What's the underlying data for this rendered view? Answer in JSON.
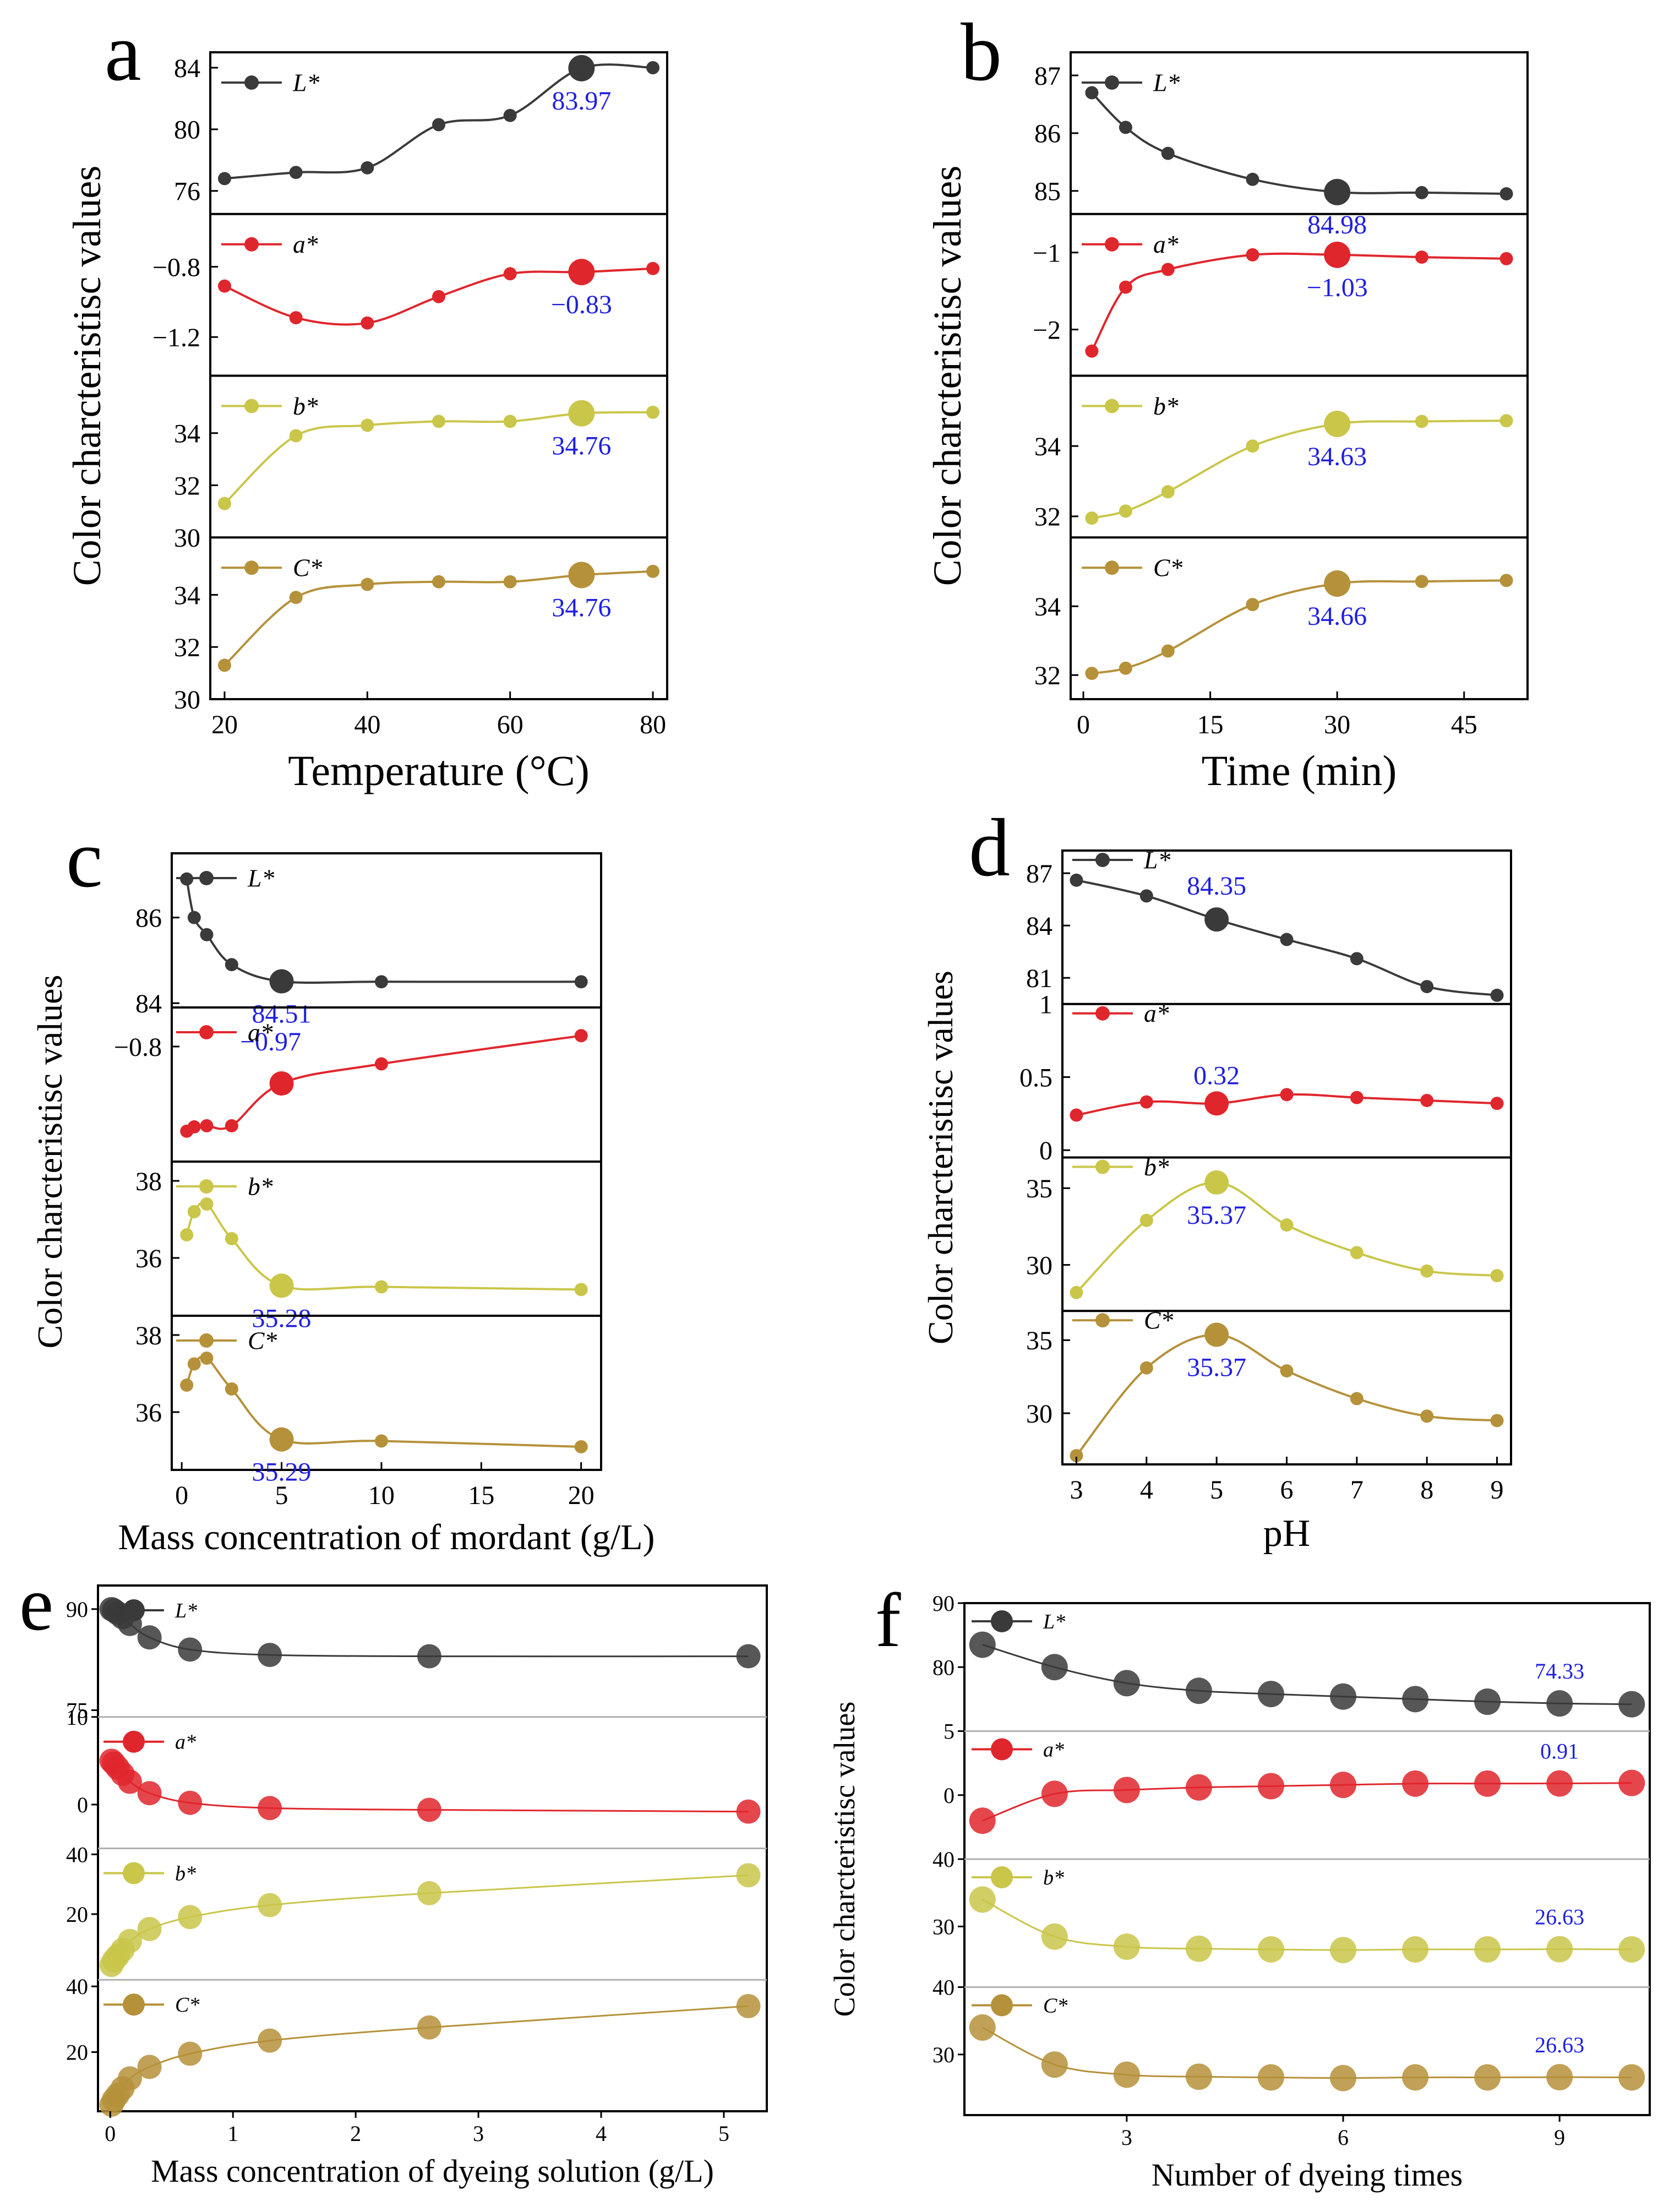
{
  "figure": {
    "shared_ylabel": "Color charcteristisc values",
    "colors": {
      "L": "#3a3a3a",
      "a": "#e0262d",
      "b": "#c9c64a",
      "C": "#b5913a",
      "annotation": "#1f1fe0",
      "divider": "#b0b0b0"
    }
  },
  "chart_data": [
    {
      "panel": "a",
      "type": "line",
      "xlabel": "Temperature (°C)",
      "ylabel": "Color charcteristisc values",
      "x": [
        20,
        30,
        40,
        50,
        60,
        70,
        80
      ],
      "xlim": [
        18,
        82
      ],
      "xticks": [
        20,
        40,
        60,
        80
      ],
      "series": [
        {
          "name": "L*",
          "key": "L",
          "values": [
            76.8,
            77.2,
            77.5,
            80.3,
            80.9,
            83.97,
            84.0
          ],
          "ylim": [
            74.5,
            85
          ],
          "yticks": [
            76,
            80,
            84
          ],
          "highlight": 5,
          "annotation": "83.97"
        },
        {
          "name": "a*",
          "key": "a",
          "values": [
            -0.91,
            -1.09,
            -1.12,
            -0.97,
            -0.84,
            -0.83,
            -0.81
          ],
          "ylim": [
            -1.42,
            -0.5
          ],
          "yticks": [
            -1.2,
            -0.8
          ],
          "highlight": 5,
          "annotation": "−0.83"
        },
        {
          "name": "b*",
          "key": "b",
          "values": [
            31.3,
            33.9,
            34.3,
            34.45,
            34.45,
            34.76,
            34.8
          ],
          "ylim": [
            30,
            36.2
          ],
          "yticks": [
            30,
            32,
            34
          ],
          "highlight": 5,
          "annotation": "34.76"
        },
        {
          "name": "C*",
          "key": "C",
          "values": [
            31.3,
            33.9,
            34.4,
            34.5,
            34.5,
            34.76,
            34.9
          ],
          "ylim": [
            30,
            36.2
          ],
          "yticks": [
            30,
            32,
            34
          ],
          "highlight": 5,
          "annotation": "34.76"
        }
      ]
    },
    {
      "panel": "b",
      "type": "line",
      "xlabel": "Time (min)",
      "ylabel": "Color charcteristisc values",
      "x": [
        1,
        5,
        10,
        20,
        30,
        40,
        50
      ],
      "xlim": [
        -1.5,
        52.5
      ],
      "xticks": [
        0,
        15,
        30,
        45
      ],
      "series": [
        {
          "name": "L*",
          "key": "L",
          "values": [
            86.7,
            86.1,
            85.65,
            85.2,
            84.98,
            84.97,
            84.95
          ],
          "ylim": [
            84.6,
            87.4
          ],
          "yticks": [
            85,
            86,
            87
          ],
          "highlight": 4,
          "annotation": "84.98"
        },
        {
          "name": "a*",
          "key": "a",
          "values": [
            -2.28,
            -1.45,
            -1.22,
            -1.03,
            -1.03,
            -1.06,
            -1.08
          ],
          "ylim": [
            -2.6,
            -0.5
          ],
          "yticks": [
            -2,
            -1
          ],
          "highlight": 4,
          "annotation": "−1.03"
        },
        {
          "name": "b*",
          "key": "b",
          "values": [
            31.95,
            32.15,
            32.7,
            34.0,
            34.63,
            34.7,
            34.72
          ],
          "ylim": [
            31.4,
            36.0
          ],
          "yticks": [
            32,
            34
          ],
          "highlight": 4,
          "annotation": "34.63"
        },
        {
          "name": "C*",
          "key": "C",
          "values": [
            32.05,
            32.2,
            32.7,
            34.05,
            34.66,
            34.72,
            34.75
          ],
          "ylim": [
            31.3,
            36.0
          ],
          "yticks": [
            32,
            34
          ],
          "highlight": 4,
          "annotation": "34.66"
        }
      ]
    },
    {
      "panel": "c",
      "type": "line",
      "xlabel": "Mass concentration of mordant (g/L)",
      "ylabel": "Color charcteristisc values",
      "x": [
        0.25,
        0.625,
        1.25,
        2.5,
        5,
        10,
        20
      ],
      "xlim": [
        -0.5,
        21
      ],
      "xticks": [
        0,
        5,
        10,
        15,
        20
      ],
      "series": [
        {
          "name": "L*",
          "key": "L",
          "values": [
            86.9,
            86.0,
            85.6,
            84.9,
            84.51,
            84.5,
            84.5
          ],
          "ylim": [
            83.9,
            87.5
          ],
          "yticks": [
            84,
            86
          ],
          "highlight": 4,
          "annotation": "84.51"
        },
        {
          "name": "a*",
          "key": "a",
          "values": [
            -1.19,
            -1.17,
            -1.165,
            -1.165,
            -0.97,
            -0.88,
            -0.75
          ],
          "ylim": [
            -1.33,
            -0.62
          ],
          "yticks": [
            -0.8
          ],
          "highlight": 4,
          "annotation": "−0.97"
        },
        {
          "name": "b*",
          "key": "b",
          "values": [
            36.6,
            37.2,
            37.4,
            36.5,
            35.28,
            35.25,
            35.18
          ],
          "ylim": [
            34.5,
            38.5
          ],
          "yticks": [
            36,
            38
          ],
          "highlight": 4,
          "annotation": "35.28"
        },
        {
          "name": "C*",
          "key": "C",
          "values": [
            36.7,
            37.25,
            37.4,
            36.6,
            35.29,
            35.25,
            35.1
          ],
          "ylim": [
            34.5,
            38.5
          ],
          "yticks": [
            36,
            38
          ],
          "highlight": 4,
          "annotation": "35.29"
        }
      ]
    },
    {
      "panel": "d",
      "type": "line",
      "xlabel": "pH",
      "ylabel": "Color charcteristisc values",
      "x": [
        3,
        4,
        5,
        6,
        7,
        8,
        9
      ],
      "xlim": [
        2.8,
        9.2
      ],
      "xticks": [
        3,
        4,
        5,
        6,
        7,
        8,
        9
      ],
      "series": [
        {
          "name": "L*",
          "key": "L",
          "values": [
            86.6,
            85.7,
            84.35,
            83.2,
            82.1,
            80.5,
            80.0
          ],
          "ylim": [
            79.5,
            88.3
          ],
          "yticks": [
            81,
            84,
            87
          ],
          "highlight": 2,
          "annotation": "84.35"
        },
        {
          "name": "a*",
          "key": "a",
          "values": [
            0.24,
            0.33,
            0.32,
            0.38,
            0.36,
            0.34,
            0.32
          ],
          "ylim": [
            -0.05,
            1.0
          ],
          "yticks": [
            0.0,
            0.5,
            1.0
          ],
          "highlight": 2,
          "annotation": "0.32"
        },
        {
          "name": "b*",
          "key": "b",
          "values": [
            28.2,
            32.9,
            35.37,
            32.6,
            30.8,
            29.6,
            29.3
          ],
          "ylim": [
            27.0,
            37.0
          ],
          "yticks": [
            30,
            35
          ],
          "highlight": 2,
          "annotation": "35.37"
        },
        {
          "name": "C*",
          "key": "C",
          "values": [
            27.1,
            33.1,
            35.37,
            32.9,
            31.0,
            29.8,
            29.5
          ],
          "ylim": [
            26.5,
            37.0
          ],
          "yticks": [
            30,
            35
          ],
          "highlight": 2,
          "annotation": "35.37"
        }
      ]
    },
    {
      "panel": "e",
      "type": "line",
      "xlabel": "Mass concentration of dyeing solution (g/L)",
      "ylabel": "Color charcteristisc values",
      "x": [
        0.01,
        0.03,
        0.06,
        0.1,
        0.16,
        0.32,
        0.65,
        1.3,
        2.6,
        5.2
      ],
      "xlim": [
        -0.1,
        5.35
      ],
      "xticks": [
        0,
        1,
        2,
        3,
        4,
        5
      ],
      "series": [
        {
          "name": "L*",
          "key": "L",
          "values": [
            90.0,
            89.8,
            89.4,
            88.8,
            87.8,
            85.8,
            84.0,
            83.2,
            83.0,
            83.0
          ],
          "ylim": [
            74,
            93.5
          ],
          "yticks": [
            75,
            90
          ],
          "highlight": null,
          "annotation": ""
        },
        {
          "name": "a*",
          "key": "a",
          "values": [
            5.0,
            4.7,
            4.2,
            3.5,
            2.6,
            1.3,
            0.2,
            -0.4,
            -0.6,
            -0.8
          ],
          "ylim": [
            -5,
            10
          ],
          "yticks": [
            0,
            10
          ],
          "highlight": null,
          "annotation": ""
        },
        {
          "name": "b*",
          "key": "b",
          "values": [
            3.0,
            4.5,
            6.0,
            8.0,
            11.0,
            15.0,
            19.0,
            23.0,
            27.0,
            33.0
          ],
          "ylim": [
            -2,
            42
          ],
          "yticks": [
            20,
            40
          ],
          "highlight": null,
          "annotation": ""
        },
        {
          "name": "C*",
          "key": "C",
          "values": [
            4.0,
            5.5,
            7.0,
            9.0,
            12.0,
            15.5,
            19.5,
            23.5,
            27.5,
            34.0
          ],
          "ylim": [
            2,
            42
          ],
          "yticks": [
            20,
            40
          ],
          "highlight": null,
          "annotation": ""
        }
      ]
    },
    {
      "panel": "f",
      "type": "line",
      "xlabel": "Number of dyeing times",
      "ylabel": "Color charcteristisc values",
      "x": [
        1,
        2,
        3,
        4,
        5,
        6,
        7,
        8,
        9,
        10
      ],
      "xlim": [
        0.75,
        10.25
      ],
      "xticks": [
        3,
        6,
        9
      ],
      "series": [
        {
          "name": "L*",
          "key": "L",
          "values": [
            83.5,
            80.0,
            77.5,
            76.3,
            75.8,
            75.4,
            75.0,
            74.6,
            74.33,
            74.2
          ],
          "ylim": [
            70,
            90
          ],
          "yticks": [
            80,
            90
          ],
          "highlight": 8,
          "annotation": "74.33"
        },
        {
          "name": "a*",
          "key": "a",
          "values": [
            -2.0,
            0.1,
            0.4,
            0.6,
            0.7,
            0.8,
            0.9,
            0.9,
            0.91,
            0.95
          ],
          "ylim": [
            -5,
            5
          ],
          "yticks": [
            0,
            5
          ],
          "highlight": 8,
          "annotation": "0.91"
        },
        {
          "name": "b*",
          "key": "b",
          "values": [
            34.0,
            28.5,
            27.0,
            26.7,
            26.6,
            26.5,
            26.6,
            26.6,
            26.63,
            26.6
          ],
          "ylim": [
            21,
            40
          ],
          "yticks": [
            30,
            40
          ],
          "highlight": 8,
          "annotation": "26.63"
        },
        {
          "name": "C*",
          "key": "C",
          "values": [
            34.0,
            28.5,
            27.0,
            26.7,
            26.6,
            26.5,
            26.6,
            26.6,
            26.63,
            26.6
          ],
          "ylim": [
            21,
            40
          ],
          "yticks": [
            30,
            40
          ],
          "highlight": 8,
          "annotation": "26.63"
        }
      ]
    }
  ]
}
